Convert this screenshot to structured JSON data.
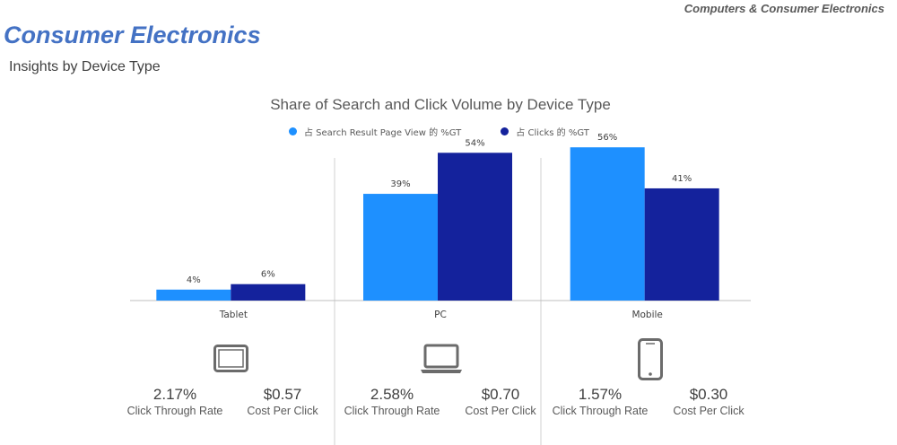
{
  "header": {
    "category": "Computers & Consumer Electronics",
    "title": "Consumer Electronics",
    "subtitle": "Insights by Device Type"
  },
  "colors": {
    "series1": "#1E90FF",
    "series2": "#14229C"
  },
  "chart_data": {
    "type": "bar",
    "title": "Share of Search and Click Volume by Device Type",
    "categories": [
      "Tablet",
      "PC",
      "Mobile"
    ],
    "series": [
      {
        "name": "占 Search Result Page View 的 %GT",
        "values": [
          4,
          39,
          56
        ],
        "labels": [
          "4%",
          "39%",
          "56%"
        ]
      },
      {
        "name": "占 Clicks 的 %GT",
        "values": [
          6,
          54,
          41
        ],
        "labels": [
          "6%",
          "54%",
          "41%"
        ]
      }
    ],
    "ylim": [
      0,
      60
    ],
    "xlabel": "",
    "ylabel": "",
    "legend": "top-center",
    "grid": false
  },
  "devices": [
    {
      "name": "Tablet",
      "icon": "tablet-icon",
      "ctr": "2.17%",
      "ctr_label": "Click Through Rate",
      "cpc": "$0.57",
      "cpc_label": "Cost Per Click"
    },
    {
      "name": "PC",
      "icon": "laptop-icon",
      "ctr": "2.58%",
      "ctr_label": "Click Through Rate",
      "cpc": "$0.70",
      "cpc_label": "Cost Per Click"
    },
    {
      "name": "Mobile",
      "icon": "smartphone-icon",
      "ctr": "1.57%",
      "ctr_label": "Click Through Rate",
      "cpc": "$0.30",
      "cpc_label": "Cost Per Click"
    }
  ]
}
